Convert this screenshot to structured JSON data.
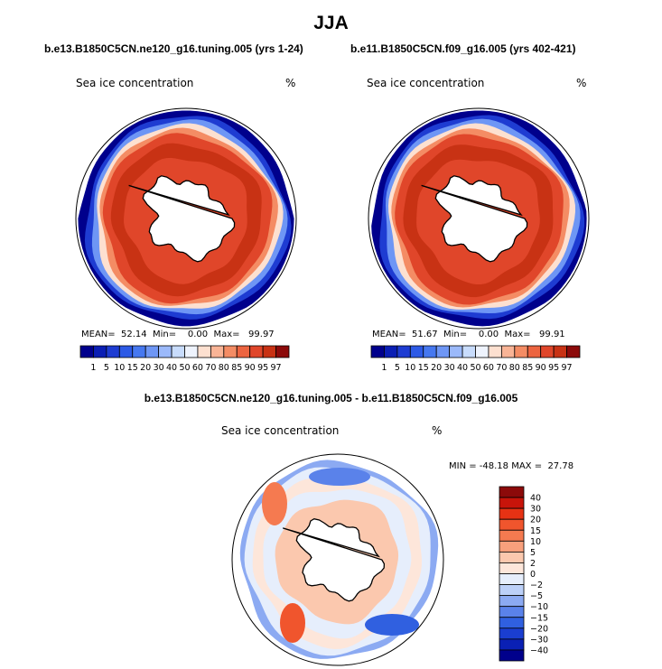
{
  "page": {
    "title": "JJA",
    "panel_left_title": "b.e13.B1850C5CN.ne120_g16.tuning.005 (yrs 1-24)",
    "panel_right_title": "b.e11.B1850C5CN.f09_g16.005 (yrs 402-421)",
    "diff_title": "b.e13.B1850C5CN.ne120_g16.tuning.005 - b.e11.B1850C5CN.f09_g16.005"
  },
  "panels": [
    {
      "variable": "Sea ice concentration",
      "units": "%",
      "stats": "MEAN=  52.14  Min=    0.00  Max=   99.97"
    },
    {
      "variable": "Sea ice concentration",
      "units": "%",
      "stats": "MEAN=  51.67  Min=    0.00  Max=   99.91"
    },
    {
      "variable": "Sea ice concentration",
      "units": "%",
      "stats": "MIN = -48.18 MAX =  27.78"
    }
  ],
  "chart_data": [
    {
      "type": "heatmap",
      "projection": "south polar stereographic",
      "title": "b.e13.B1850C5CN.ne120_g16.tuning.005 (yrs 1-24)",
      "variable": "Sea ice concentration",
      "units": "%",
      "stats": {
        "mean": 52.14,
        "min": 0.0,
        "max": 99.97
      },
      "colorbar": {
        "orientation": "horizontal",
        "levels": [
          1,
          5,
          10,
          15,
          20,
          30,
          40,
          50,
          60,
          70,
          80,
          85,
          90,
          95,
          97
        ],
        "colors": [
          "#00008c",
          "#0a1eb4",
          "#1e3cd2",
          "#2d5ae6",
          "#4678f0",
          "#6e96f5",
          "#9bb9fa",
          "#c8dcfc",
          "#eef3fd",
          "#fde0d0",
          "#f9b496",
          "#f48c64",
          "#ec6440",
          "#e0462a",
          "#c83214",
          "#8c0a0a"
        ]
      }
    },
    {
      "type": "heatmap",
      "projection": "south polar stereographic",
      "title": "b.e11.B1850C5CN.f09_g16.005 (yrs 402-421)",
      "variable": "Sea ice concentration",
      "units": "%",
      "stats": {
        "mean": 51.67,
        "min": 0.0,
        "max": 99.91
      },
      "colorbar": {
        "orientation": "horizontal",
        "levels": [
          1,
          5,
          10,
          15,
          20,
          30,
          40,
          50,
          60,
          70,
          80,
          85,
          90,
          95,
          97
        ],
        "colors": [
          "#00008c",
          "#0a1eb4",
          "#1e3cd2",
          "#2d5ae6",
          "#4678f0",
          "#6e96f5",
          "#9bb9fa",
          "#c8dcfc",
          "#eef3fd",
          "#fde0d0",
          "#f9b496",
          "#f48c64",
          "#ec6440",
          "#e0462a",
          "#c83214",
          "#8c0a0a"
        ]
      }
    },
    {
      "type": "heatmap",
      "projection": "south polar stereographic",
      "title": "b.e13.B1850C5CN.ne120_g16.tuning.005 - b.e11.B1850C5CN.f09_g16.005",
      "variable": "Sea ice concentration",
      "units": "%",
      "stats": {
        "min": -48.18,
        "max": 27.78
      },
      "colorbar": {
        "orientation": "vertical",
        "levels": [
          40,
          30,
          20,
          15,
          10,
          5,
          2,
          0,
          -2,
          -5,
          -10,
          -15,
          -20,
          -30,
          -40
        ],
        "colors": [
          "#8c0a0a",
          "#c8140a",
          "#e63214",
          "#f0552d",
          "#f57a50",
          "#f8a07c",
          "#fbc8ae",
          "#fde6da",
          "#e6eefc",
          "#bcd0f8",
          "#8caaf2",
          "#5a82ea",
          "#3060e0",
          "#1a3ed0",
          "#0a20b4",
          "#00008c"
        ]
      }
    }
  ]
}
